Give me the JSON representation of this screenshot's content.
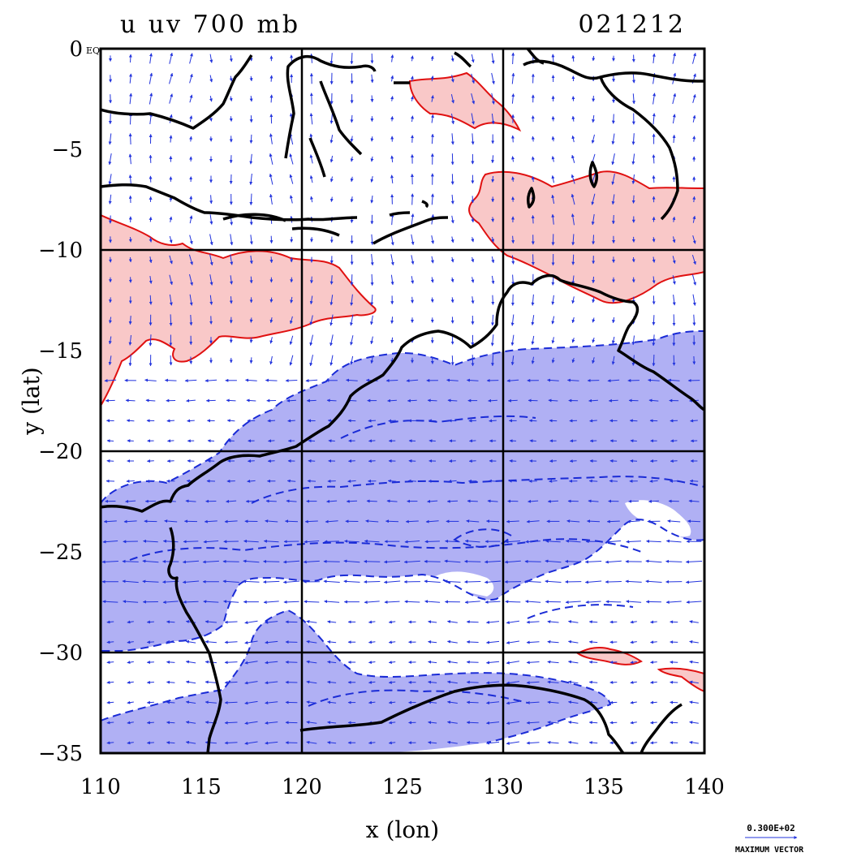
{
  "title": {
    "left": "u uv 700 mb",
    "right": "021212"
  },
  "axes": {
    "xlabel": "x (lon)",
    "ylabel": "y (lat)",
    "xticks": [
      "110",
      "115",
      "120",
      "125",
      "130",
      "135",
      "140"
    ],
    "yticks": [
      "0",
      "−5",
      "−10",
      "−15",
      "−20",
      "−25",
      "−30",
      "−35"
    ],
    "y0_suffix": "EQ",
    "xlim": [
      110,
      140
    ],
    "ylim": [
      -35,
      0
    ],
    "grid_lons": [
      120,
      130
    ],
    "grid_lats": [
      -10,
      -20,
      -30
    ]
  },
  "legend": {
    "value": "0.300E+02",
    "label": "MAXIMUM VECTOR"
  },
  "colors": {
    "positive_fill": "#f9c8c8",
    "positive_line": "#e01010",
    "negative_fill": "#b0b0f4",
    "negative_line": "#1a2bd6",
    "vectors": "#2233dd",
    "coast": "#000000"
  }
}
